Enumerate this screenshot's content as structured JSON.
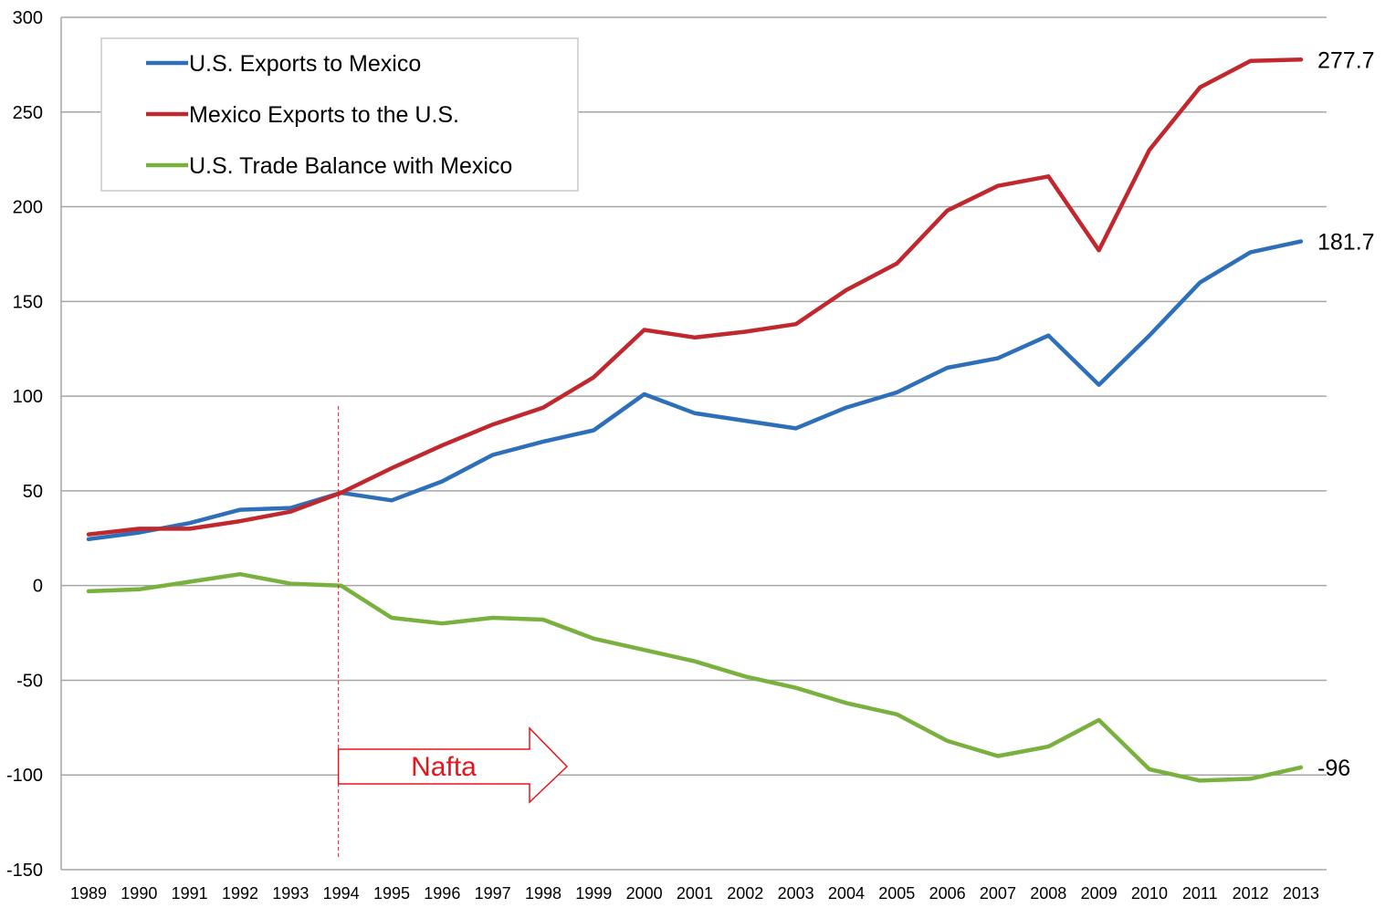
{
  "chart_data": {
    "type": "line",
    "title": "",
    "xlabel": "",
    "ylabel": "",
    "ylim": [
      -150,
      300
    ],
    "yticks": [
      "300",
      "250",
      "200",
      "150",
      "100",
      "50",
      "0",
      "-50",
      "-100",
      "-150"
    ],
    "ytick_values": [
      300,
      250,
      200,
      150,
      100,
      50,
      0,
      -50,
      -100,
      -150
    ],
    "categories": [
      "1989",
      "1990",
      "1991",
      "1992",
      "1993",
      "1994",
      "1995",
      "1996",
      "1997",
      "1998",
      "1999",
      "2000",
      "2001",
      "2002",
      "2003",
      "2004",
      "2005",
      "2006",
      "2007",
      "2008",
      "2009",
      "2010",
      "2011",
      "2012",
      "2013"
    ],
    "grid": true,
    "legend_position": "top-left",
    "series": [
      {
        "name": "U.S. Exports to Mexico",
        "color": "#2e6fb9",
        "values": [
          24.5,
          28,
          33,
          40,
          41,
          49,
          45,
          55,
          69,
          76,
          82,
          101,
          91,
          87,
          83,
          94,
          102,
          115,
          120,
          132,
          106,
          132,
          160,
          176,
          181.7
        ],
        "end_label": "181.7"
      },
      {
        "name": "Mexico Exports to the U.S.",
        "color": "#c0282e",
        "values": [
          27,
          30,
          30,
          34,
          39,
          49,
          62,
          74,
          85,
          94,
          110,
          135,
          131,
          134,
          138,
          156,
          170,
          198,
          211,
          216,
          177,
          230,
          263,
          277,
          277.7
        ],
        "end_label": "277.7"
      },
      {
        "name": "U.S. Trade Balance with Mexico",
        "color": "#79b03e",
        "values": [
          -3,
          -2,
          2,
          6,
          1,
          0,
          -17,
          -20,
          -17,
          -18,
          -28,
          -34,
          -40,
          -48,
          -54,
          -62,
          -68,
          -82,
          -90,
          -85,
          -71,
          -97,
          -103,
          -102,
          -96
        ],
        "end_label": "-96"
      }
    ],
    "annotations": {
      "nafta_label": "Nafta",
      "nafta_year": "1994",
      "nafta_color": "#e8141b"
    }
  }
}
